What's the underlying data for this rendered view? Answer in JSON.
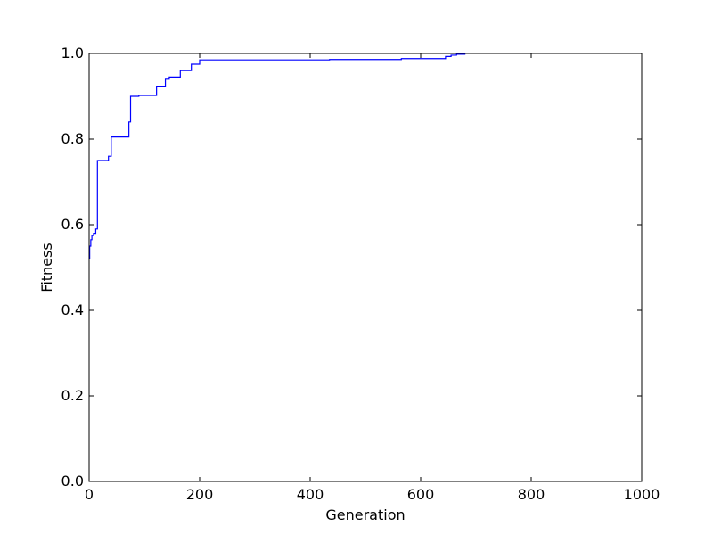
{
  "chart_data": {
    "type": "line",
    "title": "",
    "xlabel": "Generation",
    "ylabel": "Fitness",
    "xlim": [
      0,
      1000
    ],
    "ylim": [
      0.0,
      1.0
    ],
    "xticks": [
      0,
      200,
      400,
      600,
      800,
      1000
    ],
    "xtick_labels": [
      "0",
      "200",
      "400",
      "600",
      "800",
      "1000"
    ],
    "yticks": [
      0.0,
      0.2,
      0.4,
      0.6,
      0.8,
      1.0
    ],
    "ytick_labels": [
      "0.0",
      "0.2",
      "0.4",
      "0.6",
      "0.8",
      "1.0"
    ],
    "grid": false,
    "legend": "none",
    "series": [
      {
        "color": "#0000ff",
        "step": true,
        "x": [
          0,
          1,
          3,
          5,
          8,
          12,
          15,
          35,
          40,
          72,
          75,
          90,
          122,
          138,
          145,
          165,
          185,
          200,
          435,
          565,
          645,
          655,
          665,
          680
        ],
        "y": [
          0.52,
          0.55,
          0.565,
          0.575,
          0.58,
          0.59,
          0.75,
          0.76,
          0.805,
          0.84,
          0.9,
          0.902,
          0.922,
          0.94,
          0.945,
          0.96,
          0.975,
          0.985,
          0.986,
          0.988,
          0.993,
          0.996,
          0.998,
          1.0
        ]
      }
    ]
  }
}
